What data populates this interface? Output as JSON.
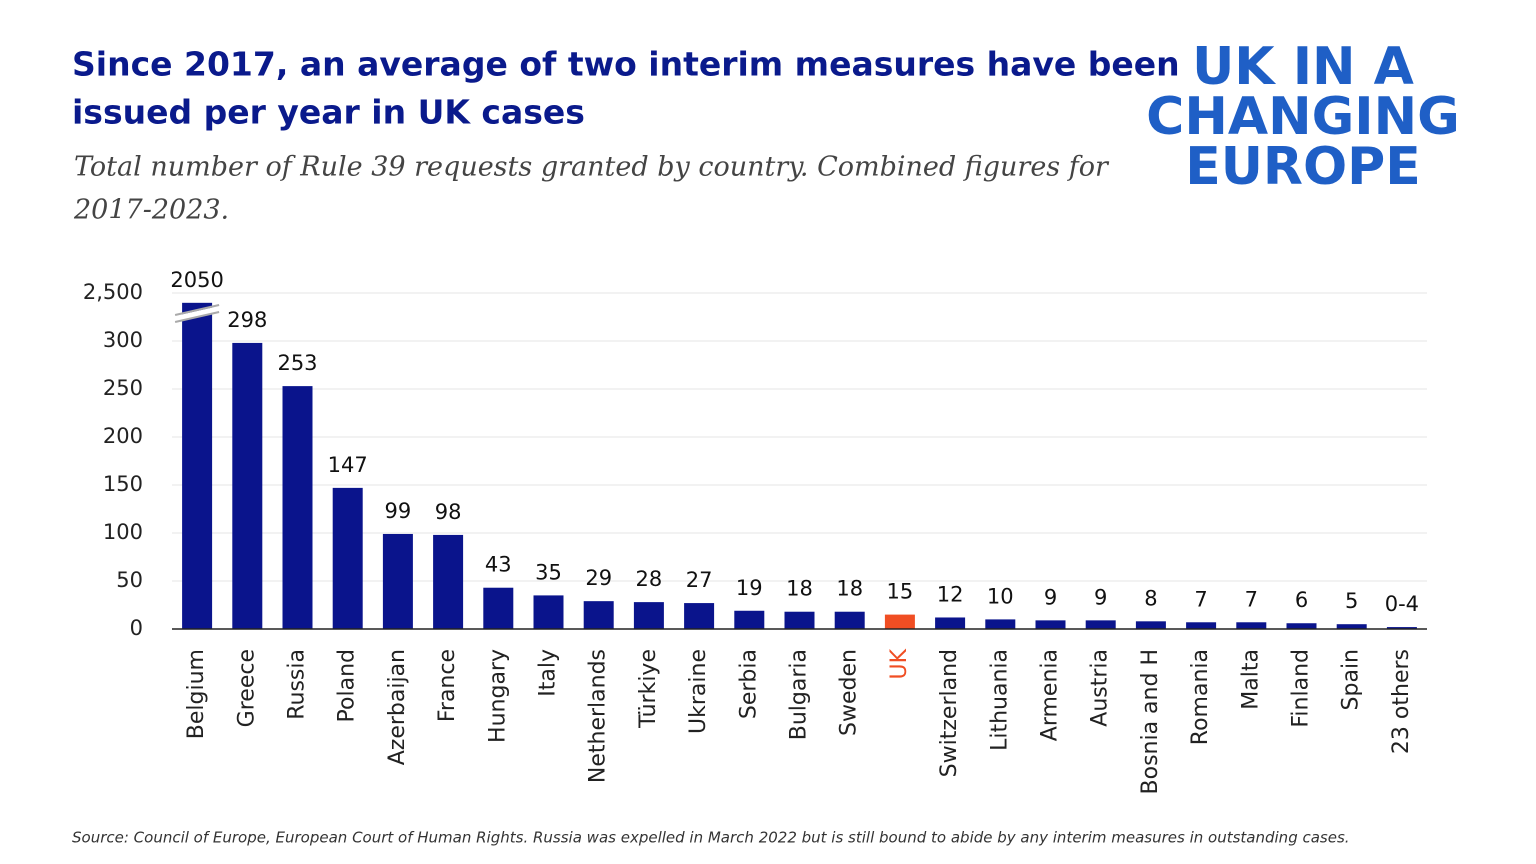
{
  "chart_data": {
    "type": "bar",
    "title_lines": [
      "Since 2017, an average of two interim measures have been",
      "issued per year in UK cases"
    ],
    "subtitle_lines": [
      "Total number of Rule 39 requests granted by country. Combined figures for",
      "2017-2023."
    ],
    "logo_lines": [
      "UK IN A",
      "CHANGING",
      "EUROPE"
    ],
    "source": "Source: Council of Europe, European Court of Human Rights. Russia was expelled in March 2022 but is still bound to abide by any interim measures in outstanding cases.",
    "categories": [
      "Belgium",
      "Greece",
      "Russia",
      "Poland",
      "Azerbaijan",
      "France",
      "Hungary",
      "Italy",
      "Netherlands",
      "Türkiye",
      "Ukraine",
      "Serbia",
      "Bulgaria",
      "Sweden",
      "UK",
      "Switzerland",
      "Lithuania",
      "Armenia",
      "Austria",
      "Bosnia and H",
      "Romania",
      "Malta",
      "Finland",
      "Spain",
      "23 others"
    ],
    "values": [
      2050,
      298,
      253,
      147,
      99,
      98,
      43,
      35,
      29,
      28,
      27,
      19,
      18,
      18,
      15,
      12,
      10,
      9,
      9,
      8,
      7,
      7,
      6,
      5,
      2
    ],
    "value_labels": [
      "2050",
      "298",
      "253",
      "147",
      "99",
      "98",
      "43",
      "35",
      "29",
      "28",
      "27",
      "19",
      "18",
      "18",
      "15",
      "12",
      "10",
      "9",
      "9",
      "8",
      "7",
      "7",
      "6",
      "5",
      "0-4"
    ],
    "color": "#0a148c",
    "colors": [
      "#0a148c",
      "#0a148c",
      "#0a148c",
      "#0a148c",
      "#0a148c",
      "#0a148c",
      "#0a148c",
      "#0a148c",
      "#0a148c",
      "#0a148c",
      "#0a148c",
      "#0a148c",
      "#0a148c",
      "#0a148c",
      "#f04e23",
      "#0a148c",
      "#0a148c",
      "#0a148c",
      "#0a148c",
      "#0a148c",
      "#0a148c",
      "#0a148c",
      "#0a148c",
      "#0a148c",
      "#0a148c"
    ],
    "ylim": [
      0,
      2500
    ],
    "yticks": [
      0,
      50,
      100,
      150,
      200,
      250,
      300,
      {
        "value": 2500,
        "label": "2,500"
      }
    ],
    "axis_break": true,
    "grid": true
  }
}
